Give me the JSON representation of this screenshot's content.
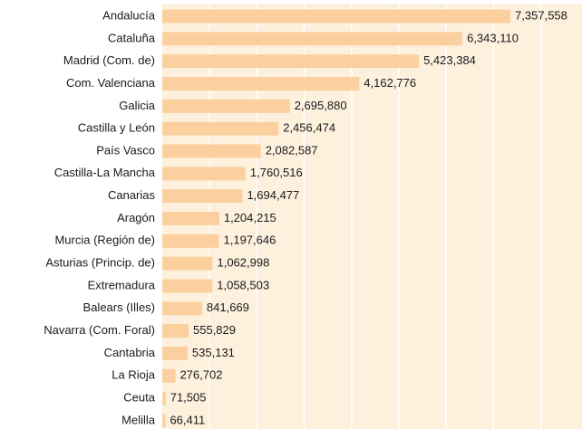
{
  "chart_data": {
    "type": "bar",
    "orientation": "horizontal",
    "categories": [
      "Andalucía",
      "Cataluña",
      "Madrid (Com. de)",
      "Com. Valenciana",
      "Galicia",
      "Castilla y León",
      "País Vasco",
      "Castilla-La Mancha",
      "Canarias",
      "Aragón",
      "Murcia (Región de)",
      "Asturias (Princip. de)",
      "Extremadura",
      "Balears (Illes)",
      "Navarra (Com. Foral)",
      "Cantabria",
      "La Rioja",
      "Ceuta",
      "Melilla"
    ],
    "values": [
      7357558,
      6343110,
      5423384,
      4162776,
      2695880,
      2456474,
      2082587,
      1760516,
      1694477,
      1204215,
      1197646,
      1062998,
      1058503,
      841669,
      555829,
      535131,
      276702,
      71505,
      66411
    ],
    "value_labels": [
      "7,357,558",
      "6,343,110",
      "5,423,384",
      "4,162,776",
      "2,695,880",
      "2,456,474",
      "2,082,587",
      "1,760,516",
      "1,694,477",
      "1,204,215",
      "1,197,646",
      "1,062,998",
      "1,058,503",
      "841,669",
      "555,829",
      "535,131",
      "276,702",
      "71,505",
      "66,411"
    ],
    "color": "#fcd09e",
    "xlim": [
      0,
      8870000
    ],
    "xticks": [
      1000000,
      2000000,
      3000000,
      4000000,
      5000000,
      6000000,
      7000000,
      8000000
    ],
    "grid": true
  }
}
